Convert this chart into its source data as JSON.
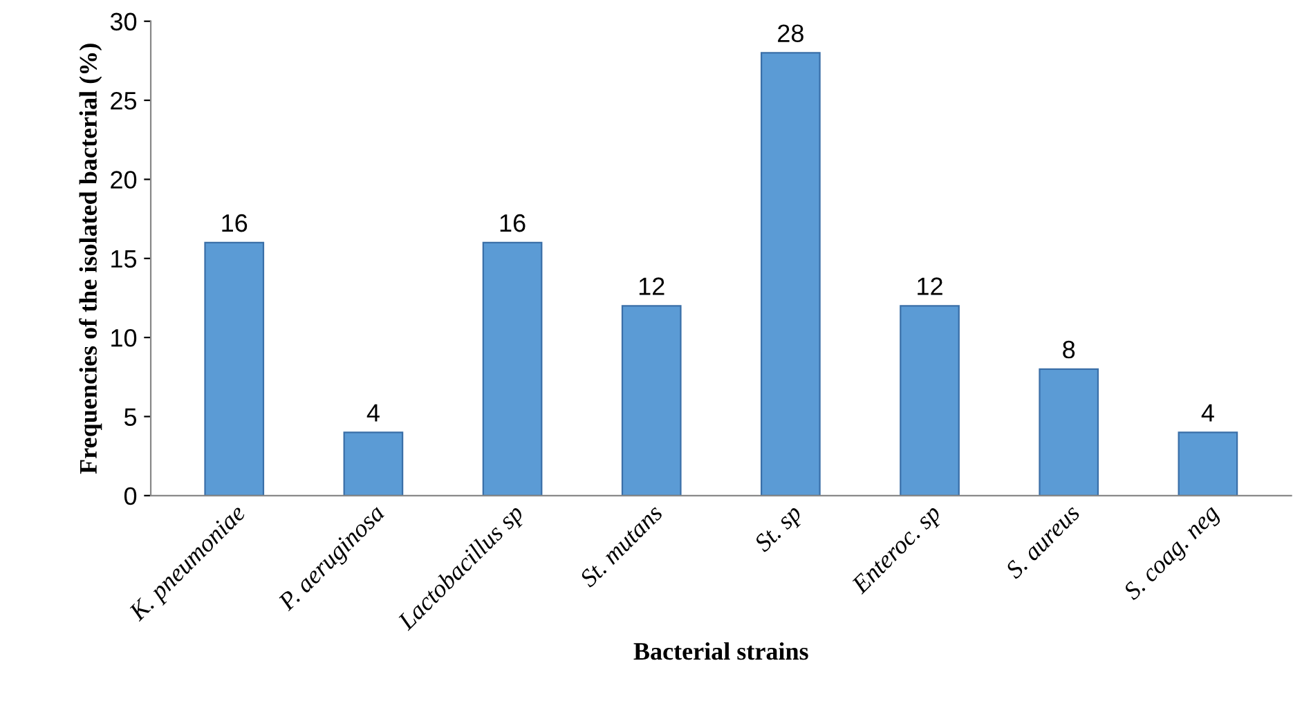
{
  "chart_data": {
    "type": "bar",
    "xlabel": "Bacterial strains",
    "ylabel": "Frequencies of the isolated bacterial (%)",
    "categories": [
      "K. pneumoniae",
      "P. aeruginosa",
      "Lactobacillus sp",
      "St. mutans",
      "St. sp",
      "Enteroc. sp",
      "S. aureus",
      "S. coag. neg"
    ],
    "values": [
      16,
      4,
      16,
      12,
      28,
      12,
      8,
      4
    ],
    "color": "#5b9bd5",
    "ylim": [
      0,
      30
    ],
    "yticks": [
      0,
      5,
      10,
      15,
      20,
      25,
      30
    ],
    "grid": false,
    "data_labels": true
  }
}
